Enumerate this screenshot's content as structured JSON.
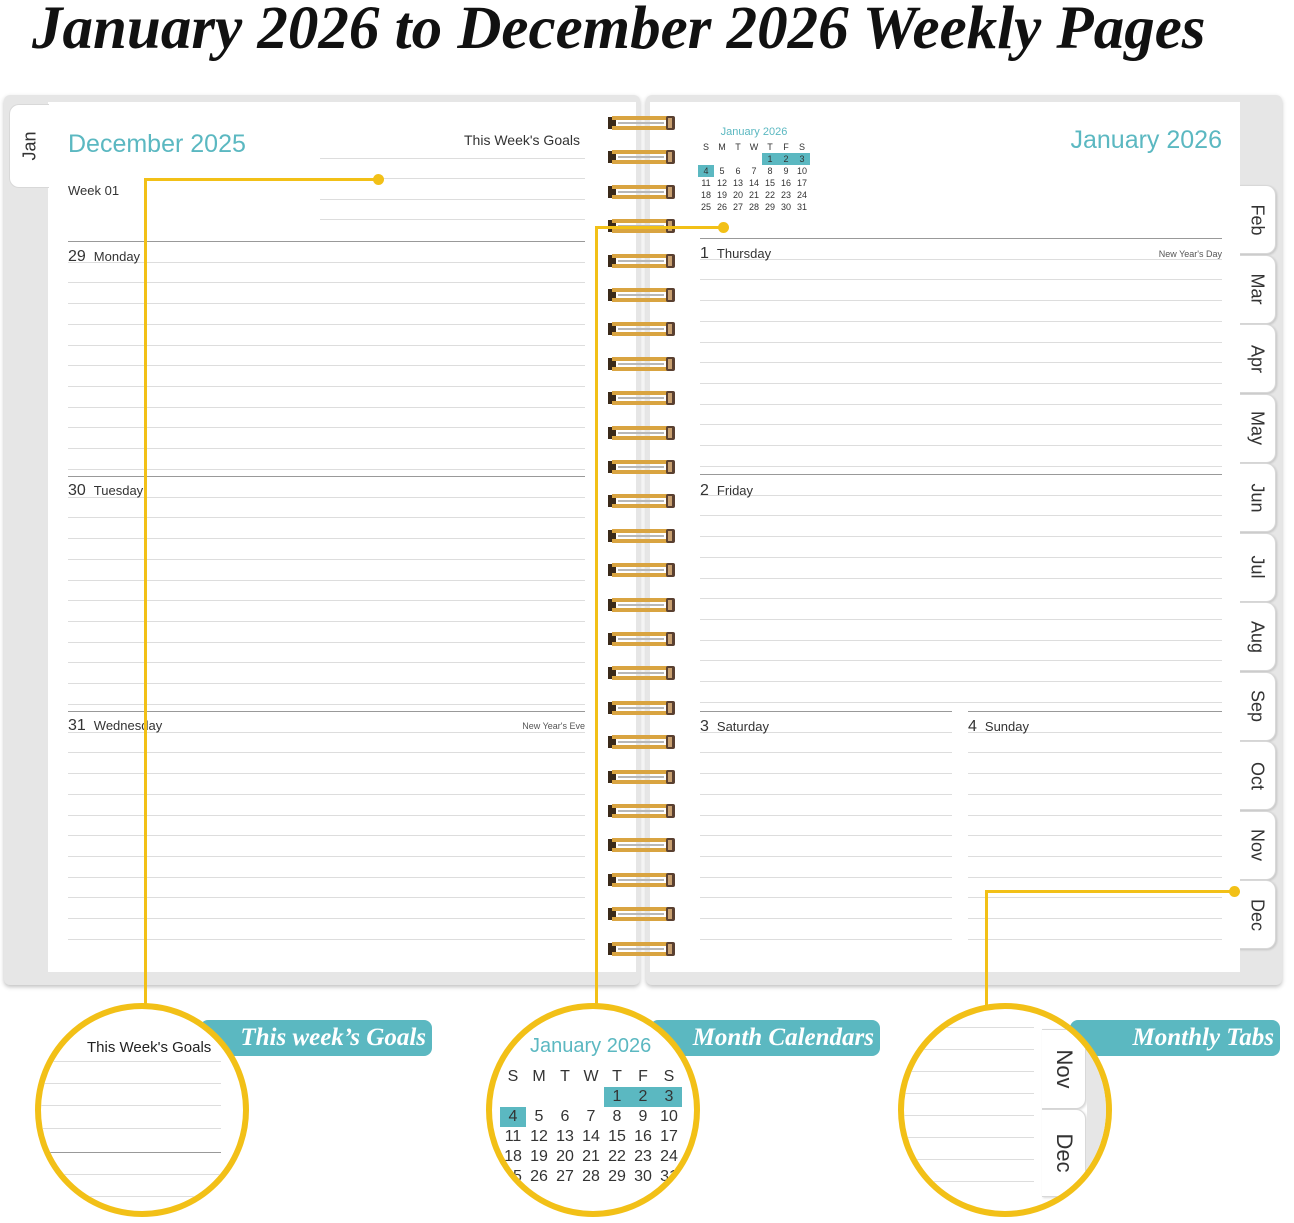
{
  "title": "January 2026 to December 2026 Weekly Pages",
  "colors": {
    "accent": "#5bb8c1",
    "callout": "#f2c017"
  },
  "left_page": {
    "tab": "Jan",
    "month_title": "December 2025",
    "goals_label": "This Week's Goals",
    "week_label": "Week 01",
    "days": [
      {
        "num": "29",
        "name": "Monday",
        "holiday": ""
      },
      {
        "num": "30",
        "name": "Tuesday",
        "holiday": ""
      },
      {
        "num": "31",
        "name": "Wednesday",
        "holiday": "New Year's Eve"
      }
    ]
  },
  "right_page": {
    "month_title": "January 2026",
    "mini_calendar": {
      "title": "January 2026",
      "weekdays": [
        "S",
        "M",
        "T",
        "W",
        "T",
        "F",
        "S"
      ],
      "weeks": [
        [
          "",
          "",
          "",
          "",
          "1",
          "2",
          "3"
        ],
        [
          "4",
          "5",
          "6",
          "7",
          "8",
          "9",
          "10"
        ],
        [
          "11",
          "12",
          "13",
          "14",
          "15",
          "16",
          "17"
        ],
        [
          "18",
          "19",
          "20",
          "21",
          "22",
          "23",
          "24"
        ],
        [
          "25",
          "26",
          "27",
          "28",
          "29",
          "30",
          "31"
        ]
      ],
      "highlighted": [
        "1",
        "2",
        "3",
        "4"
      ]
    },
    "days": [
      {
        "num": "1",
        "name": "Thursday",
        "holiday": "New Year's Day"
      },
      {
        "num": "2",
        "name": "Friday",
        "holiday": ""
      },
      {
        "num": "3",
        "name": "Saturday",
        "holiday": ""
      },
      {
        "num": "4",
        "name": "Sunday",
        "holiday": ""
      }
    ],
    "tabs": [
      "Feb",
      "Mar",
      "Apr",
      "May",
      "Jun",
      "Jul",
      "Aug",
      "Sep",
      "Oct",
      "Nov",
      "Dec"
    ]
  },
  "callouts": [
    {
      "label": "This week’s Goals",
      "zoom_text": "This Week's Goals"
    },
    {
      "label": "Month Calendars",
      "zoom_text": "January 2026"
    },
    {
      "label": "Monthly Tabs",
      "zoom_tabs": [
        "Nov",
        "Dec"
      ]
    }
  ]
}
